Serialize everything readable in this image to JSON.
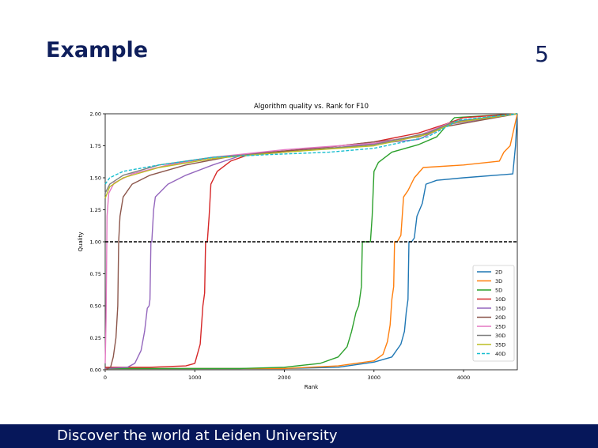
{
  "slide": {
    "title": "Example",
    "page_number": "5",
    "footer_text": "Discover the world at Leiden University"
  },
  "colors": {
    "title": "#0f1f5c",
    "footer_bg": "#06175a"
  },
  "chart_data": {
    "type": "line",
    "title": "Algorithm quality vs. Rank for F10",
    "xlabel": "Rank",
    "ylabel": "Quality",
    "xlim": [
      0,
      4600
    ],
    "ylim": [
      0,
      2.0
    ],
    "xticks": [
      0,
      1000,
      2000,
      3000,
      4000
    ],
    "yticks": [
      "0.00",
      "0.25",
      "0.50",
      "0.75",
      "1.00",
      "1.25",
      "1.50",
      "1.75",
      "2.00"
    ],
    "grid": false,
    "legend_position": "lower-right",
    "reference_line": {
      "y": 1.0,
      "style": "dashed",
      "color": "#000000"
    },
    "series": [
      {
        "name": "2D",
        "color": "#1f77b4",
        "dash": false,
        "points": [
          [
            0,
            0.01
          ],
          [
            1000,
            0.01
          ],
          [
            2000,
            0.01
          ],
          [
            2600,
            0.02
          ],
          [
            3000,
            0.06
          ],
          [
            3200,
            0.1
          ],
          [
            3300,
            0.2
          ],
          [
            3340,
            0.3
          ],
          [
            3360,
            0.45
          ],
          [
            3380,
            0.55
          ],
          [
            3390,
            1.0
          ],
          [
            3420,
            1.0
          ],
          [
            3450,
            1.03
          ],
          [
            3480,
            1.2
          ],
          [
            3540,
            1.3
          ],
          [
            3580,
            1.45
          ],
          [
            3700,
            1.48
          ],
          [
            4000,
            1.5
          ],
          [
            4550,
            1.53
          ],
          [
            4580,
            1.75
          ],
          [
            4600,
            2.0
          ]
        ]
      },
      {
        "name": "3D",
        "color": "#ff7f0e",
        "dash": false,
        "points": [
          [
            0,
            0.01
          ],
          [
            1000,
            0.01
          ],
          [
            2000,
            0.01
          ],
          [
            2600,
            0.03
          ],
          [
            3000,
            0.07
          ],
          [
            3100,
            0.12
          ],
          [
            3150,
            0.22
          ],
          [
            3180,
            0.35
          ],
          [
            3200,
            0.55
          ],
          [
            3220,
            0.65
          ],
          [
            3230,
            1.0
          ],
          [
            3260,
            1.0
          ],
          [
            3300,
            1.05
          ],
          [
            3330,
            1.35
          ],
          [
            3380,
            1.4
          ],
          [
            3450,
            1.5
          ],
          [
            3550,
            1.58
          ],
          [
            4000,
            1.6
          ],
          [
            4400,
            1.63
          ],
          [
            4450,
            1.7
          ],
          [
            4520,
            1.75
          ],
          [
            4600,
            2.0
          ]
        ]
      },
      {
        "name": "5D",
        "color": "#2ca02c",
        "dash": false,
        "points": [
          [
            0,
            0.01
          ],
          [
            1000,
            0.01
          ],
          [
            1500,
            0.01
          ],
          [
            2000,
            0.02
          ],
          [
            2400,
            0.05
          ],
          [
            2600,
            0.1
          ],
          [
            2700,
            0.18
          ],
          [
            2750,
            0.3
          ],
          [
            2800,
            0.45
          ],
          [
            2830,
            0.5
          ],
          [
            2860,
            0.65
          ],
          [
            2870,
            1.0
          ],
          [
            2960,
            1.0
          ],
          [
            2980,
            1.2
          ],
          [
            3000,
            1.55
          ],
          [
            3050,
            1.62
          ],
          [
            3200,
            1.7
          ],
          [
            3500,
            1.76
          ],
          [
            3700,
            1.82
          ],
          [
            3800,
            1.9
          ],
          [
            3900,
            1.97
          ],
          [
            4600,
            2.0
          ]
        ]
      },
      {
        "name": "10D",
        "color": "#d62728",
        "dash": false,
        "points": [
          [
            0,
            0.02
          ],
          [
            500,
            0.02
          ],
          [
            900,
            0.03
          ],
          [
            1000,
            0.05
          ],
          [
            1060,
            0.2
          ],
          [
            1090,
            0.5
          ],
          [
            1110,
            0.6
          ],
          [
            1120,
            1.0
          ],
          [
            1140,
            1.0
          ],
          [
            1160,
            1.2
          ],
          [
            1180,
            1.45
          ],
          [
            1250,
            1.55
          ],
          [
            1400,
            1.63
          ],
          [
            1600,
            1.68
          ],
          [
            2500,
            1.74
          ],
          [
            3000,
            1.78
          ],
          [
            3500,
            1.85
          ],
          [
            3800,
            1.92
          ],
          [
            4000,
            1.97
          ],
          [
            4600,
            2.0
          ]
        ]
      },
      {
        "name": "15D",
        "color": "#9467bd",
        "dash": false,
        "points": [
          [
            0,
            0.01
          ],
          [
            250,
            0.02
          ],
          [
            330,
            0.05
          ],
          [
            400,
            0.15
          ],
          [
            440,
            0.3
          ],
          [
            470,
            0.48
          ],
          [
            490,
            0.5
          ],
          [
            500,
            0.55
          ],
          [
            510,
            1.0
          ],
          [
            520,
            1.0
          ],
          [
            540,
            1.25
          ],
          [
            560,
            1.35
          ],
          [
            700,
            1.45
          ],
          [
            900,
            1.52
          ],
          [
            1200,
            1.6
          ],
          [
            1500,
            1.67
          ],
          [
            2500,
            1.73
          ],
          [
            3500,
            1.8
          ],
          [
            3850,
            1.92
          ],
          [
            4600,
            2.0
          ]
        ]
      },
      {
        "name": "20D",
        "color": "#8c564b",
        "dash": false,
        "points": [
          [
            0,
            0.0
          ],
          [
            60,
            0.02
          ],
          [
            90,
            0.1
          ],
          [
            120,
            0.25
          ],
          [
            140,
            0.5
          ],
          [
            150,
            1.0
          ],
          [
            165,
            1.2
          ],
          [
            200,
            1.35
          ],
          [
            300,
            1.45
          ],
          [
            500,
            1.52
          ],
          [
            900,
            1.6
          ],
          [
            1500,
            1.68
          ],
          [
            2500,
            1.74
          ],
          [
            3500,
            1.82
          ],
          [
            3800,
            1.9
          ],
          [
            4600,
            2.0
          ]
        ]
      },
      {
        "name": "25D",
        "color": "#e377c2",
        "dash": false,
        "points": [
          [
            0,
            0.05
          ],
          [
            10,
            0.4
          ],
          [
            20,
            1.2
          ],
          [
            40,
            1.38
          ],
          [
            100,
            1.46
          ],
          [
            300,
            1.53
          ],
          [
            700,
            1.6
          ],
          [
            1200,
            1.66
          ],
          [
            2000,
            1.72
          ],
          [
            3000,
            1.77
          ],
          [
            3500,
            1.83
          ],
          [
            3850,
            1.93
          ],
          [
            4600,
            2.0
          ]
        ]
      },
      {
        "name": "30D",
        "color": "#7f7f7f",
        "dash": false,
        "points": [
          [
            0,
            1.38
          ],
          [
            50,
            1.45
          ],
          [
            200,
            1.52
          ],
          [
            600,
            1.6
          ],
          [
            1200,
            1.66
          ],
          [
            2000,
            1.7
          ],
          [
            3000,
            1.76
          ],
          [
            3600,
            1.85
          ],
          [
            3900,
            1.94
          ],
          [
            4600,
            2.0
          ]
        ]
      },
      {
        "name": "35D",
        "color": "#bcbd22",
        "dash": false,
        "points": [
          [
            0,
            1.34
          ],
          [
            50,
            1.43
          ],
          [
            200,
            1.5
          ],
          [
            600,
            1.58
          ],
          [
            1200,
            1.65
          ],
          [
            2000,
            1.7
          ],
          [
            3000,
            1.75
          ],
          [
            3600,
            1.84
          ],
          [
            3900,
            1.93
          ],
          [
            4600,
            2.0
          ]
        ]
      },
      {
        "name": "40D",
        "color": "#17becf",
        "dash": true,
        "points": [
          [
            0,
            1.45
          ],
          [
            50,
            1.5
          ],
          [
            200,
            1.55
          ],
          [
            600,
            1.6
          ],
          [
            1200,
            1.66
          ],
          [
            1800,
            1.68
          ],
          [
            2500,
            1.7
          ],
          [
            3000,
            1.73
          ],
          [
            3600,
            1.82
          ],
          [
            3950,
            1.95
          ],
          [
            4600,
            2.0
          ]
        ]
      }
    ]
  }
}
